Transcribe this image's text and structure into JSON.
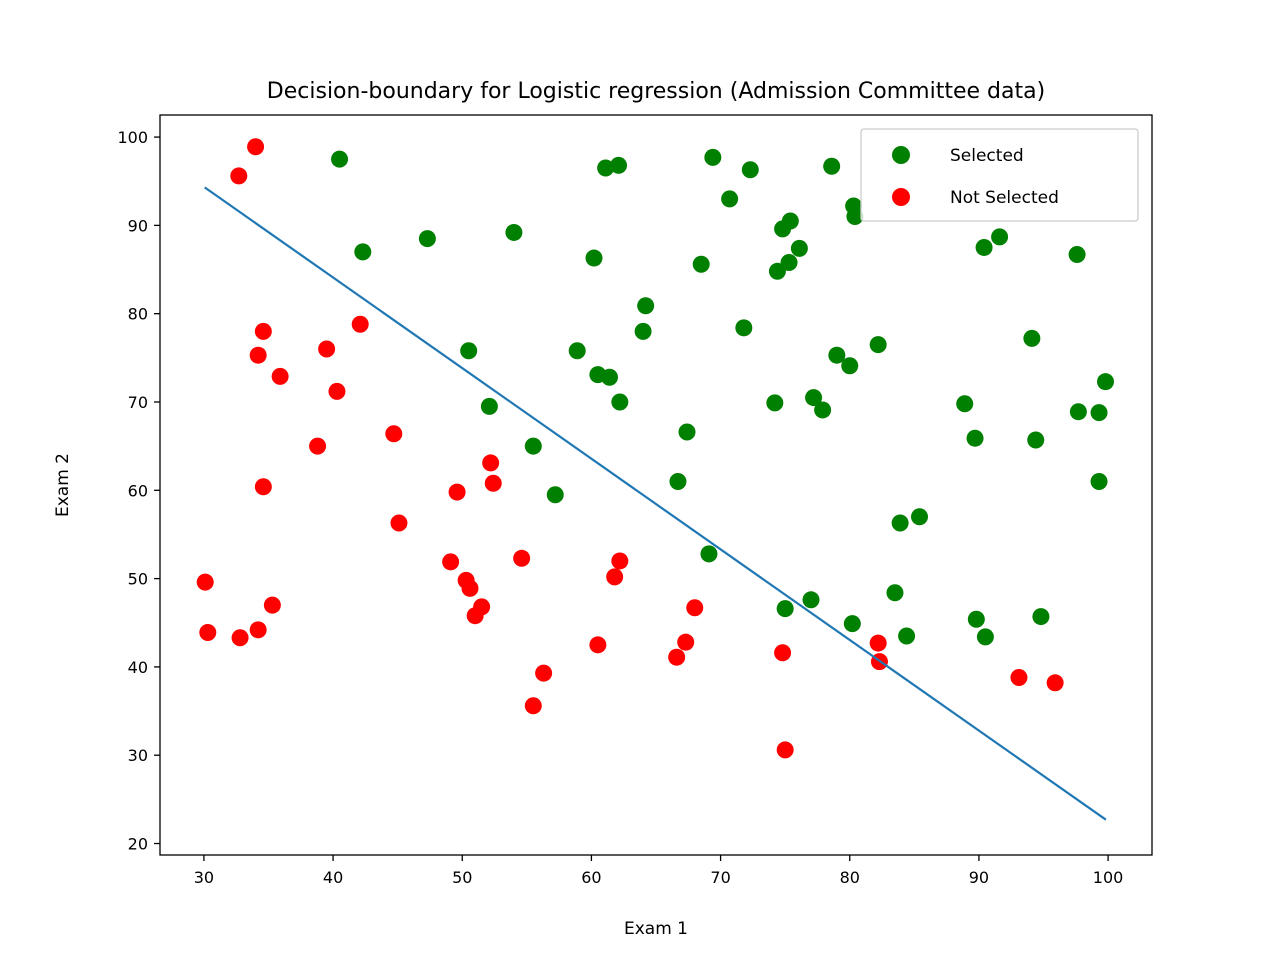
{
  "chart_data": {
    "type": "scatter",
    "title": "Decision-boundary for Logistic regression (Admission Committee data)",
    "xlabel": "Exam 1",
    "ylabel": "Exam 2",
    "xlim": [
      26.6,
      103.4
    ],
    "ylim": [
      18.7,
      102.5
    ],
    "xticks": [
      30,
      40,
      50,
      60,
      70,
      80,
      90,
      100
    ],
    "yticks": [
      20,
      30,
      40,
      50,
      60,
      70,
      80,
      90,
      100
    ],
    "grid": false,
    "legend_position": "top-right",
    "series": [
      {
        "name": "Selected",
        "color": "#008000",
        "points": [
          [
            40.5,
            97.5
          ],
          [
            42.3,
            87.0
          ],
          [
            47.3,
            88.5
          ],
          [
            54.0,
            89.2
          ],
          [
            60.2,
            86.3
          ],
          [
            61.1,
            96.5
          ],
          [
            62.1,
            96.8
          ],
          [
            69.4,
            97.7
          ],
          [
            70.7,
            93.0
          ],
          [
            72.3,
            96.3
          ],
          [
            78.6,
            96.7
          ],
          [
            80.3,
            92.2
          ],
          [
            80.4,
            91.0
          ],
          [
            74.8,
            89.6
          ],
          [
            75.4,
            90.5
          ],
          [
            76.1,
            87.4
          ],
          [
            75.3,
            85.8
          ],
          [
            74.4,
            84.8
          ],
          [
            68.5,
            85.6
          ],
          [
            64.2,
            80.9
          ],
          [
            64.0,
            78.0
          ],
          [
            71.8,
            78.4
          ],
          [
            50.5,
            75.8
          ],
          [
            58.9,
            75.8
          ],
          [
            60.5,
            73.1
          ],
          [
            61.4,
            72.8
          ],
          [
            62.2,
            70.0
          ],
          [
            52.1,
            69.5
          ],
          [
            55.5,
            65.0
          ],
          [
            57.2,
            59.5
          ],
          [
            67.4,
            66.6
          ],
          [
            66.7,
            61.0
          ],
          [
            69.1,
            52.8
          ],
          [
            79.0,
            75.3
          ],
          [
            80.0,
            74.1
          ],
          [
            82.2,
            76.5
          ],
          [
            77.2,
            70.5
          ],
          [
            74.2,
            69.9
          ],
          [
            77.9,
            69.1
          ],
          [
            88.9,
            69.8
          ],
          [
            89.7,
            65.9
          ],
          [
            94.1,
            77.2
          ],
          [
            94.4,
            65.7
          ],
          [
            97.6,
            86.7
          ],
          [
            97.7,
            68.9
          ],
          [
            99.3,
            68.8
          ],
          [
            99.8,
            72.3
          ],
          [
            99.3,
            61.0
          ],
          [
            90.4,
            87.5
          ],
          [
            91.6,
            88.7
          ],
          [
            83.9,
            56.3
          ],
          [
            85.4,
            57.0
          ],
          [
            83.5,
            48.4
          ],
          [
            84.4,
            43.5
          ],
          [
            89.8,
            45.4
          ],
          [
            90.5,
            43.4
          ],
          [
            94.8,
            45.7
          ],
          [
            75.0,
            46.6
          ],
          [
            77.0,
            47.6
          ],
          [
            80.2,
            44.9
          ]
        ]
      },
      {
        "name": "Not Selected",
        "color": "#ff0000",
        "points": [
          [
            34.0,
            98.9
          ],
          [
            32.7,
            95.6
          ],
          [
            34.6,
            78.0
          ],
          [
            34.2,
            75.3
          ],
          [
            35.9,
            72.9
          ],
          [
            39.5,
            76.0
          ],
          [
            40.3,
            71.2
          ],
          [
            42.1,
            78.8
          ],
          [
            38.8,
            65.0
          ],
          [
            44.7,
            66.4
          ],
          [
            34.6,
            60.4
          ],
          [
            45.1,
            56.3
          ],
          [
            49.6,
            59.8
          ],
          [
            52.2,
            63.1
          ],
          [
            52.4,
            60.8
          ],
          [
            49.1,
            51.9
          ],
          [
            50.3,
            49.8
          ],
          [
            50.6,
            48.9
          ],
          [
            51.5,
            46.8
          ],
          [
            51.0,
            45.8
          ],
          [
            54.6,
            52.3
          ],
          [
            55.5,
            35.6
          ],
          [
            56.3,
            39.3
          ],
          [
            60.5,
            42.5
          ],
          [
            61.8,
            50.2
          ],
          [
            62.2,
            52.0
          ],
          [
            66.6,
            41.1
          ],
          [
            67.3,
            42.8
          ],
          [
            68.0,
            46.7
          ],
          [
            74.8,
            41.6
          ],
          [
            75.0,
            30.6
          ],
          [
            82.2,
            42.7
          ],
          [
            82.3,
            40.6
          ],
          [
            93.1,
            38.8
          ],
          [
            95.9,
            38.2
          ],
          [
            30.1,
            49.6
          ],
          [
            30.3,
            43.9
          ],
          [
            32.8,
            43.3
          ],
          [
            34.2,
            44.2
          ],
          [
            35.3,
            47.0
          ]
        ]
      }
    ],
    "decision_boundary": {
      "color": "#1f77b4",
      "points": [
        [
          30.06,
          94.3
        ],
        [
          99.83,
          22.7
        ]
      ]
    }
  }
}
